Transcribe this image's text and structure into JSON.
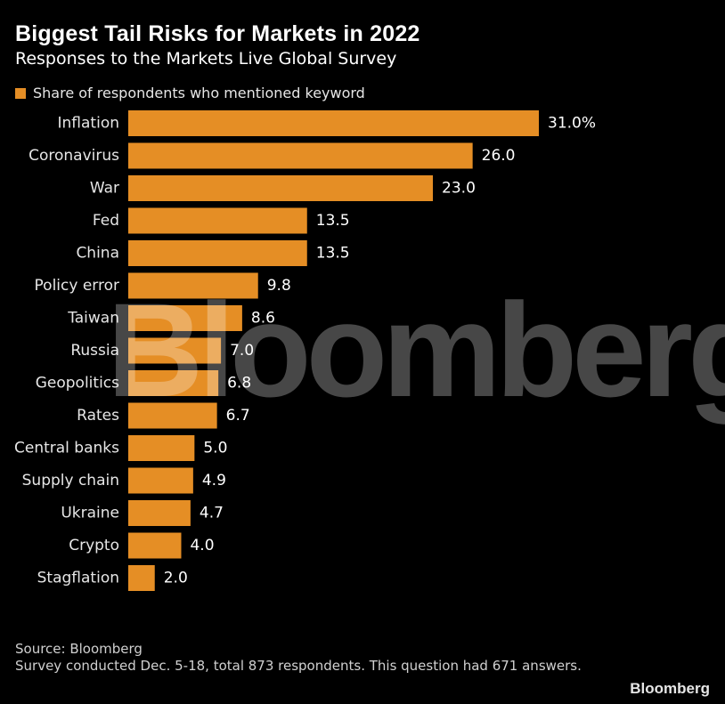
{
  "title": "Biggest Tail Risks for Markets in 2022",
  "subtitle": "Responses to the Markets Live Global Survey",
  "legend_label": "Share of respondents who mentioned keyword",
  "watermark": "Bloomberg",
  "source": "Source: Bloomberg",
  "note": "Survey conducted Dec. 5-18, total 873 respondents. This question had 671 answers.",
  "brand": "Bloomberg",
  "colors": {
    "bar": "#E58E25",
    "background": "#000000"
  },
  "chart_data": {
    "type": "bar",
    "orientation": "horizontal",
    "title": "Biggest Tail Risks for Markets in 2022",
    "subtitle": "Responses to the Markets Live Global Survey",
    "categories": [
      "Inflation",
      "Coronavirus",
      "War",
      "Fed",
      "China",
      "Policy error",
      "Taiwan",
      "Russia",
      "Geopolitics",
      "Rates",
      "Central banks",
      "Supply chain",
      "Ukraine",
      "Crypto",
      "Stagflation"
    ],
    "values": [
      31.0,
      26.0,
      23.0,
      13.5,
      13.5,
      9.8,
      8.6,
      7.0,
      6.8,
      6.7,
      5.0,
      4.9,
      4.7,
      4.0,
      2.0
    ],
    "value_labels": [
      "31.0%",
      "26.0",
      "23.0",
      "13.5",
      "13.5",
      "9.8",
      "8.6",
      "7.0",
      "6.8",
      "6.7",
      "5.0",
      "4.9",
      "4.7",
      "4.0",
      "2.0"
    ],
    "series_name": "Share of respondents who mentioned keyword",
    "xlabel": "",
    "ylabel": "",
    "xlim": [
      0,
      31.0
    ],
    "grid": false,
    "legend": "top-left"
  }
}
